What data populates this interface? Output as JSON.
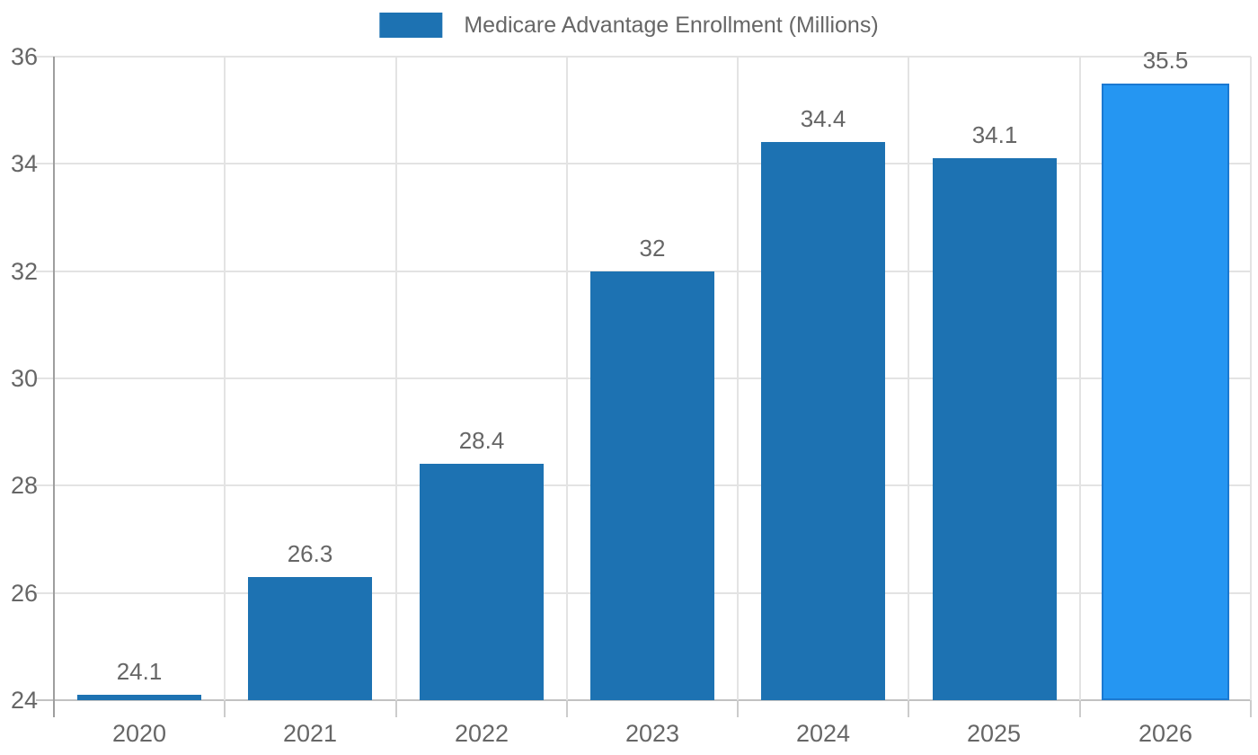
{
  "chart_data": {
    "type": "bar",
    "title": "Medicare Advantage Enrollment (Millions)",
    "categories": [
      "2020",
      "2021",
      "2022",
      "2023",
      "2024",
      "2025",
      "2026"
    ],
    "values": [
      24.1,
      26.3,
      28.4,
      32,
      34.4,
      34.1,
      35.5
    ],
    "value_labels": [
      "24.1",
      "26.3",
      "28.4",
      "32",
      "34.4",
      "34.1",
      "35.5"
    ],
    "xlabel": "",
    "ylabel": "",
    "ylim": [
      24,
      36
    ],
    "yticks": [
      24,
      26,
      28,
      30,
      32,
      34,
      36
    ],
    "ytick_labels": [
      "24",
      "26",
      "28",
      "30",
      "32",
      "34",
      "36"
    ],
    "grid": true,
    "legend_position": "top",
    "highlight_index": 6,
    "colors": {
      "bar": "#1d72b2",
      "highlight_bar": "#2596f2",
      "highlight_border": "#1b79d1",
      "label_text": "#666666",
      "legend_text": "#666666",
      "axis_line": "#9e9e9e",
      "baseline": "#c2c2c2",
      "gridline": "#e3e3e3",
      "tick": "#cccccc",
      "background": "#ffffff"
    }
  }
}
